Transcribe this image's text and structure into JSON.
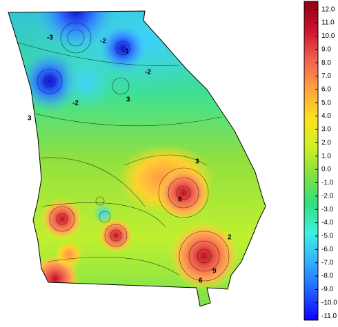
{
  "colorbar": {
    "lim": [
      -11.3,
      12.6
    ],
    "colors": [
      "#1000ff",
      "#2060ff",
      "#30b0ff",
      "#40f0e0",
      "#30e080",
      "#80e040",
      "#d0f020",
      "#ffe020",
      "#ffa040",
      "#f06050",
      "#d01030",
      "#900010"
    ],
    "ticks": [
      {
        "value": 12,
        "label": "12.0"
      },
      {
        "value": 11,
        "label": "11.0"
      },
      {
        "value": 10,
        "label": "10.0"
      },
      {
        "value": 9,
        "label": "9.0"
      },
      {
        "value": 8,
        "label": "8.0"
      },
      {
        "value": 7,
        "label": "7.0"
      },
      {
        "value": 6,
        "label": "6.0"
      },
      {
        "value": 5,
        "label": "5.0"
      },
      {
        "value": 4,
        "label": "4.0"
      },
      {
        "value": 3,
        "label": "3.0"
      },
      {
        "value": 2,
        "label": "2.0"
      },
      {
        "value": 1,
        "label": "1.0"
      },
      {
        "value": 0,
        "label": "0.0"
      },
      {
        "value": -1,
        "label": "-1.0"
      },
      {
        "value": -2,
        "label": "-2.0"
      },
      {
        "value": -3,
        "label": "-3.0"
      },
      {
        "value": -4,
        "label": "-4.0"
      },
      {
        "value": -5,
        "label": "-5.0"
      },
      {
        "value": -6,
        "label": "-6.0"
      },
      {
        "value": -7,
        "label": "-7.0"
      },
      {
        "value": -8,
        "label": "-8.0"
      },
      {
        "value": -9,
        "label": "-9.0"
      },
      {
        "value": -10,
        "label": "-10.0"
      },
      {
        "value": -11,
        "label": "-11.0"
      }
    ]
  },
  "contour_labels": [
    "-2",
    "-1",
    "-2",
    "3",
    "-2",
    "-3",
    "3",
    "8",
    "9",
    "6",
    "3",
    "2"
  ]
}
